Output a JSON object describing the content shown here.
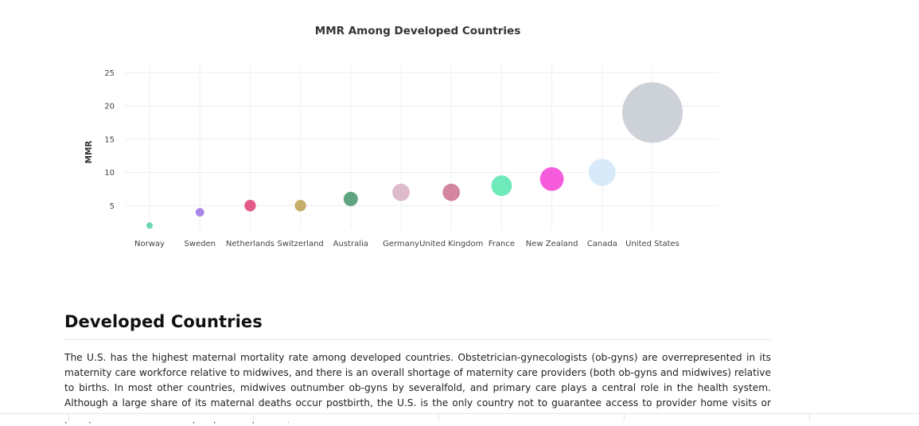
{
  "chart_data": {
    "type": "scatter",
    "title": "MMR Among Developed Countries",
    "xlabel": "",
    "ylabel": "MMR",
    "ylim": [
      0,
      26
    ],
    "yticks": [
      5,
      10,
      15,
      20,
      25
    ],
    "grid": true,
    "categories": [
      "Norway",
      "Sweden",
      "Netherlands",
      "Switzerland",
      "Australia",
      "Germany",
      "United Kingdom",
      "France",
      "New Zealand",
      "Canada",
      "United States"
    ],
    "values": [
      2,
      4,
      5,
      5,
      6,
      7,
      7,
      8,
      9,
      10,
      19
    ],
    "colors": [
      "#5ed4a8",
      "#a27ae8",
      "#e04a7c",
      "#bfa55a",
      "#4f9a74",
      "#d9b4c4",
      "#cf7896",
      "#5ee8b4",
      "#f54ad8",
      "#d4e8f8",
      "#c8ccd4"
    ]
  },
  "article": {
    "heading": "Developed Countries",
    "paragraph": "The U.S. has the highest maternal mortality rate among developed countries. Obstetrician-gynecologists (ob-gyns) are overrepresented in its maternity care workforce relative to midwives, and there is an overall shortage of maternity care providers (both ob-gyns and midwives) relative to births. In most other countries, midwives outnumber ob-gyns by severalfold, and primary care plays a central role in the health system. Although a large share of its maternal deaths occur postbirth, the U.S. is the only country not to guarantee access to provider home visits or paid parental leave in the postpartum period (Tikkanen"
  }
}
